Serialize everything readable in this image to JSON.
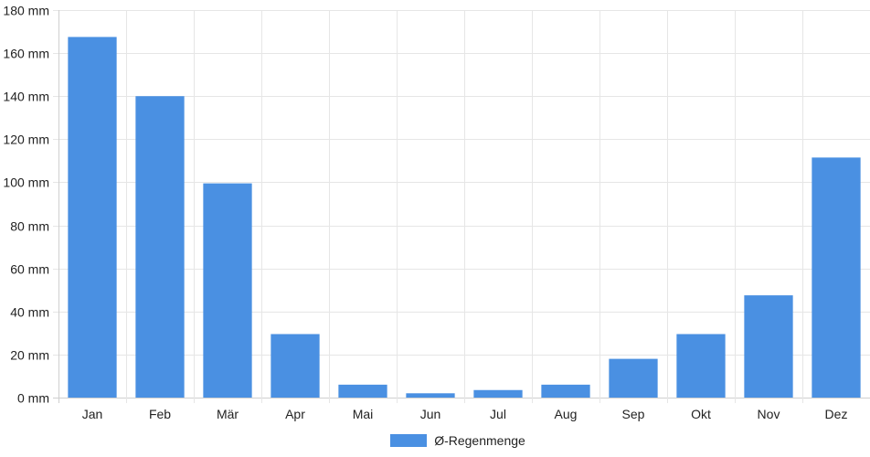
{
  "chart_data": {
    "type": "bar",
    "categories": [
      "Jan",
      "Feb",
      "Mär",
      "Apr",
      "Mai",
      "Jun",
      "Jul",
      "Aug",
      "Sep",
      "Okt",
      "Nov",
      "Dez"
    ],
    "series": [
      {
        "name": "Ø-Regenmenge",
        "values": [
          167.5,
          140,
          99.5,
          29.5,
          6,
          2,
          3.5,
          6,
          18,
          29.5,
          47.5,
          111.5
        ],
        "color": "#4a90e2"
      }
    ],
    "y_ticks": [
      "0 mm",
      "20 mm",
      "40 mm",
      "60 mm",
      "80 mm",
      "100 mm",
      "120 mm",
      "140 mm",
      "160 mm",
      "180 mm"
    ],
    "ylim": [
      0,
      180
    ],
    "y_step": 20,
    "grid": true,
    "legend_position": "bottom-center",
    "title": "",
    "xlabel": "",
    "ylabel": ""
  }
}
